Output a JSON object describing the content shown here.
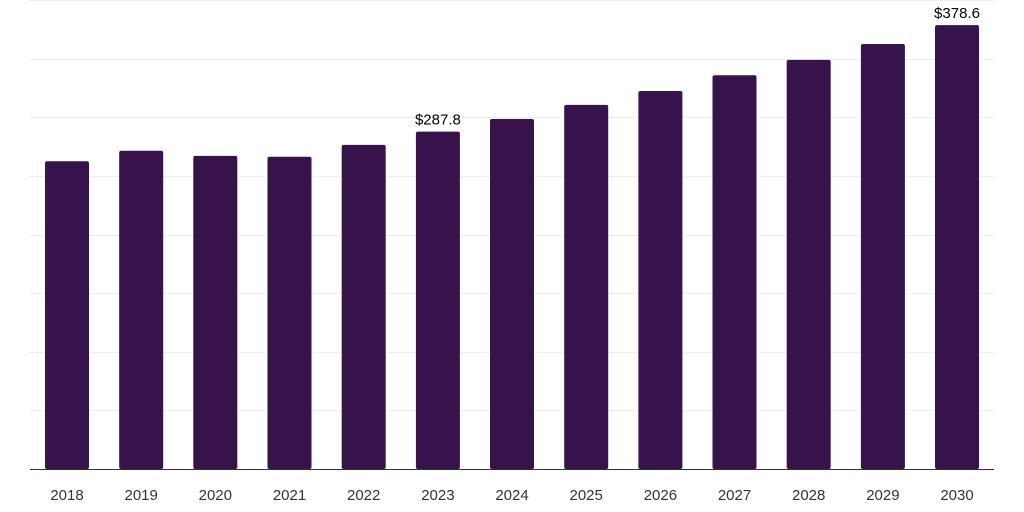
{
  "chart_data": {
    "type": "bar",
    "categories": [
      "2018",
      "2019",
      "2020",
      "2021",
      "2022",
      "2023",
      "2024",
      "2025",
      "2026",
      "2027",
      "2028",
      "2029",
      "2030"
    ],
    "values": [
      262.5,
      271.5,
      267.0,
      266.3,
      276.4,
      287.8,
      298.5,
      310.5,
      322.4,
      335.8,
      348.9,
      362.5,
      378.6
    ],
    "data_labels": [
      {
        "index": 5,
        "text": "$287.8"
      },
      {
        "index": 12,
        "text": "$378.6"
      }
    ],
    "ylim": [
      0,
      400
    ],
    "grid": true,
    "colors": {
      "bar": "#36134A",
      "grid": "#eeeeee",
      "axis": "#333333"
    }
  }
}
